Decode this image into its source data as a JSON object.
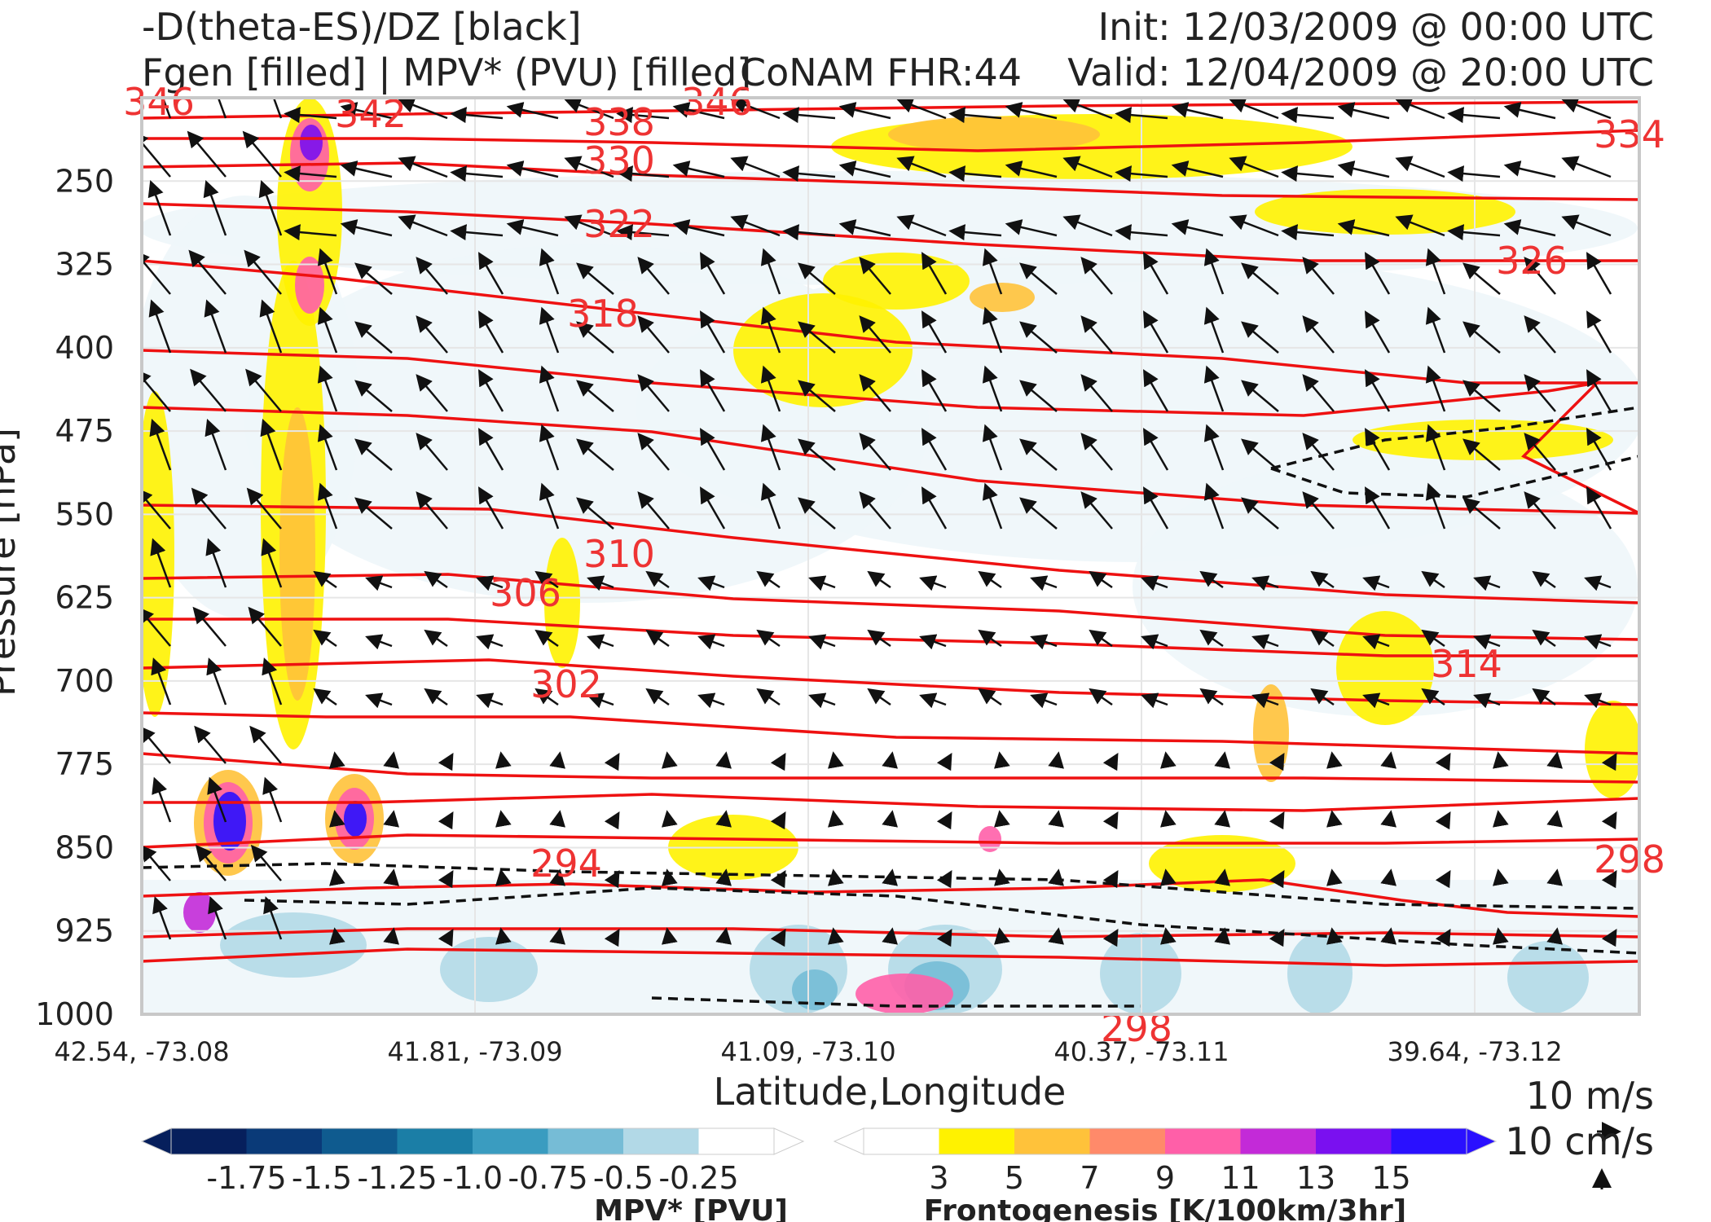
{
  "header": {
    "title_line1": "-D(theta-ES)/DZ [black]",
    "title_line2": "Fgen [filled] | MPV* (PVU) [filled]",
    "model": "CoNAM FHR:44",
    "init": "Init: 12/03/2009 @ 00:00 UTC",
    "valid": "Valid: 12/04/2009 @ 20:00 UTC"
  },
  "vector_scale": {
    "horizontal": "10 m/s",
    "vertical": "10 cm/s"
  },
  "colors": {
    "theta_contour": "#ee1111",
    "mpv_levels": [
      "#061f5c",
      "#0a3a78",
      "#0f5b8f",
      "#1b7ea6",
      "#3a9cc0",
      "#76bcd6",
      "#b2d9e7",
      "#ffffff"
    ],
    "fgen_levels": [
      "#ffffff",
      "#fff200",
      "#ffc23a",
      "#ff8a6a",
      "#ff5fa8",
      "#c32ad8",
      "#7a10f0",
      "#2a10ff"
    ]
  },
  "chart_data": {
    "type": "cross-section",
    "title": "",
    "xlabel": "Latitude,Longitude",
    "ylabel": "Pressure [hPa]",
    "x_ticks": [
      "42.54, -73.08",
      "41.81, -73.09",
      "41.09, -73.10",
      "40.37, -73.11",
      "39.64, -73.12"
    ],
    "y_ticks": [
      250,
      325,
      400,
      475,
      550,
      625,
      700,
      775,
      850,
      925,
      1000
    ],
    "ylim": [
      1000,
      175
    ],
    "theta_contours": [
      {
        "label": "294",
        "level": 294
      },
      {
        "label": "298",
        "level": 298
      },
      {
        "label": "298",
        "level": 298
      },
      {
        "label": "302",
        "level": 302
      },
      {
        "label": "306",
        "level": 306
      },
      {
        "label": "310",
        "level": 310
      },
      {
        "label": "314",
        "level": 314
      },
      {
        "label": "318",
        "level": 318
      },
      {
        "label": "322",
        "level": 322
      },
      {
        "label": "326",
        "level": 326
      },
      {
        "label": "330",
        "level": 330
      },
      {
        "label": "334",
        "level": 334
      },
      {
        "label": "338",
        "level": 338
      },
      {
        "label": "342",
        "level": 342
      },
      {
        "label": "346",
        "level": 346
      },
      {
        "label": "346",
        "level": 346
      }
    ],
    "mpv_colorbar": {
      "label": "MPV* [PVU]",
      "ticks": [
        "-1.75",
        "-1.5",
        "-1.25",
        "-1.0",
        "-0.75",
        "-0.5",
        "-0.25"
      ]
    },
    "fgen_colorbar": {
      "label": "Frontogenesis [K/100km/3hr]",
      "ticks": [
        "3",
        "5",
        "7",
        "9",
        "11",
        "13",
        "15"
      ]
    }
  }
}
